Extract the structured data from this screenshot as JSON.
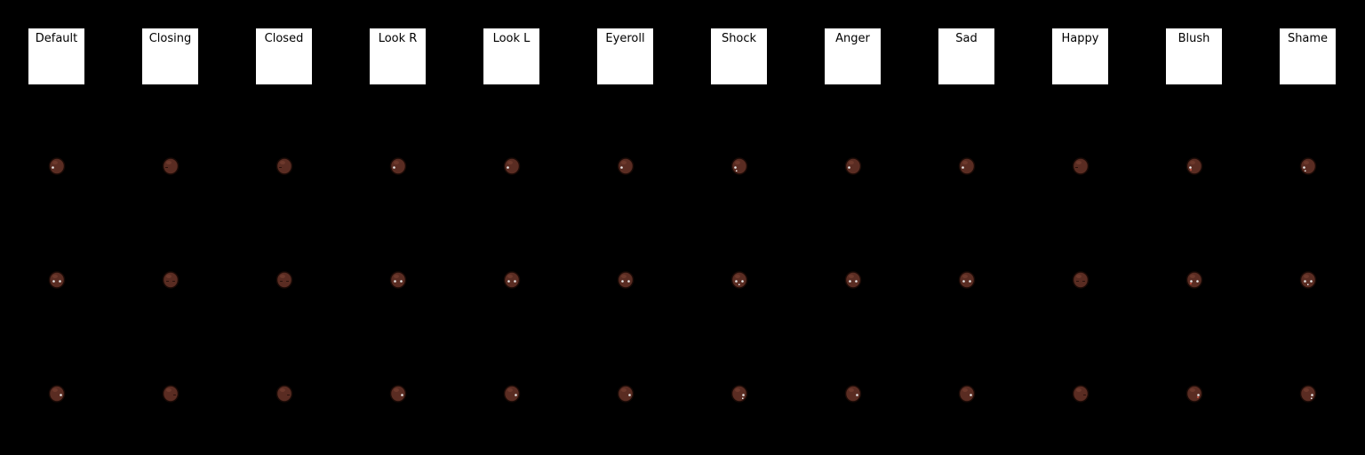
{
  "sheet": {
    "background": "#000000",
    "label_background": "#ffffff",
    "skin_color": "#5a2c22",
    "outline_color": "#1a0a06"
  },
  "columns": [
    {
      "label": "Default",
      "expression": "default"
    },
    {
      "label": "Closing",
      "expression": "closing"
    },
    {
      "label": "Closed",
      "expression": "closed"
    },
    {
      "label": "Look R",
      "expression": "look-right"
    },
    {
      "label": "Look L",
      "expression": "look-left"
    },
    {
      "label": "Eyeroll",
      "expression": "eyeroll"
    },
    {
      "label": "Shock",
      "expression": "shock"
    },
    {
      "label": "Anger",
      "expression": "anger"
    },
    {
      "label": "Sad",
      "expression": "sad"
    },
    {
      "label": "Happy",
      "expression": "happy"
    },
    {
      "label": "Blush",
      "expression": "blush"
    },
    {
      "label": "Shame",
      "expression": "shame"
    }
  ],
  "rows": [
    {
      "facing": "left"
    },
    {
      "facing": "front"
    },
    {
      "facing": "right"
    }
  ]
}
